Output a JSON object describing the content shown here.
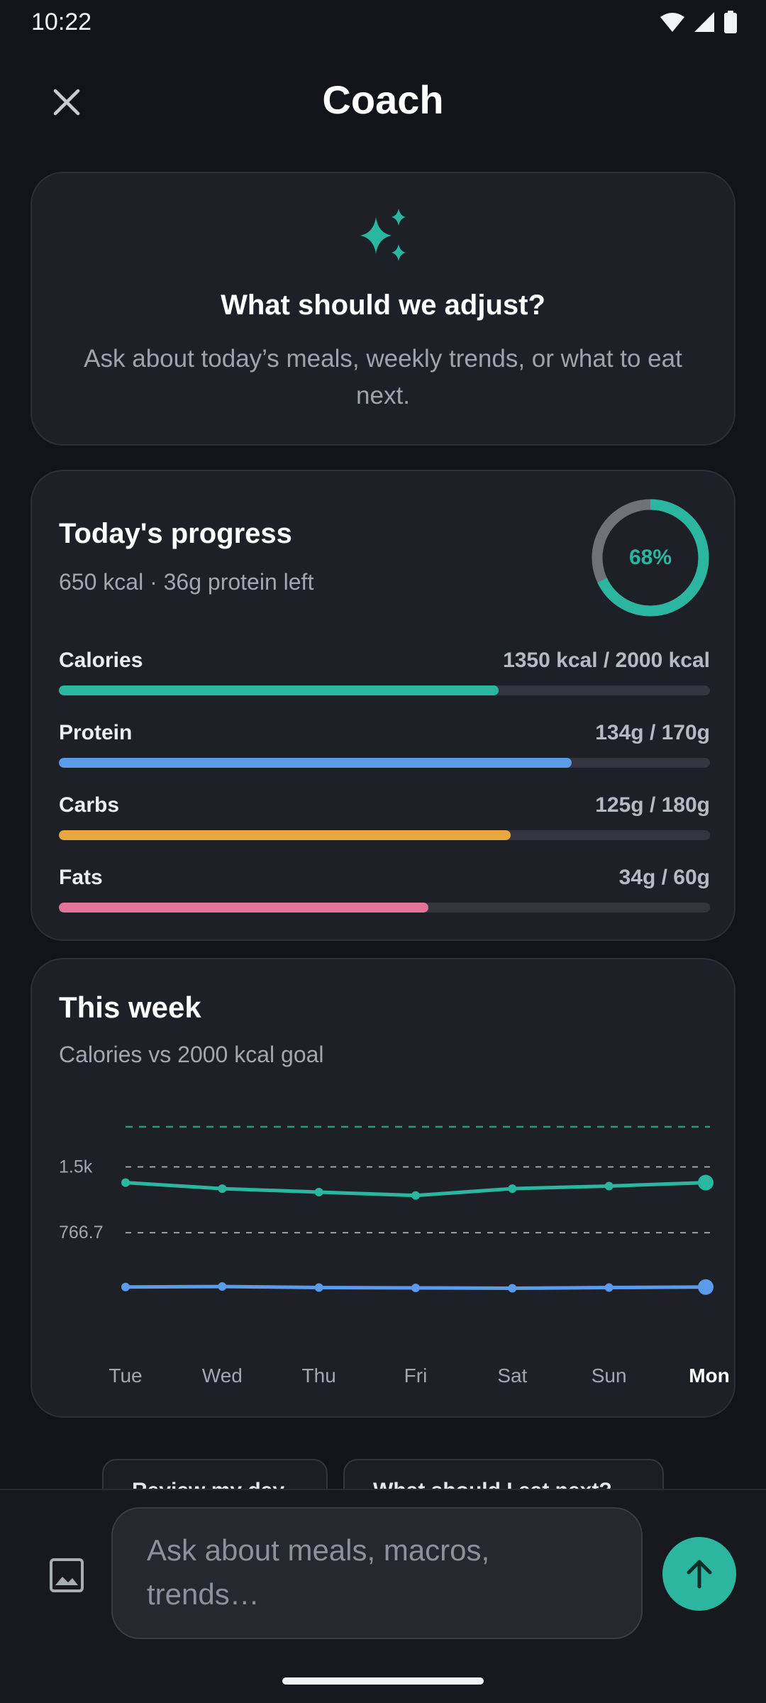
{
  "status_bar": {
    "time": "10:22"
  },
  "header": {
    "title": "Coach"
  },
  "intro": {
    "heading": "What should we adjust?",
    "subtitle": "Ask about today’s meals, weekly trends, or what to eat next."
  },
  "progress": {
    "title": "Today's progress",
    "subtitle": "650 kcal · 36g protein left",
    "ring_percent": 0.68,
    "ring_label": "68%",
    "macros": [
      {
        "name": "Calories",
        "value": "1350 kcal / 2000 kcal",
        "fraction": 0.675,
        "color": "#2bb6a0"
      },
      {
        "name": "Protein",
        "value": "134g / 170g",
        "fraction": 0.788,
        "color": "#5b9bea"
      },
      {
        "name": "Carbs",
        "value": "125g / 180g",
        "fraction": 0.694,
        "color": "#e6a83f"
      },
      {
        "name": "Fats",
        "value": "34g / 60g",
        "fraction": 0.567,
        "color": "#e57399"
      }
    ]
  },
  "week": {
    "title": "This week",
    "subtitle": "Calories vs 2000 kcal goal"
  },
  "chart_data": {
    "type": "line",
    "categories": [
      "Tue",
      "Wed",
      "Thu",
      "Fri",
      "Sat",
      "Sun",
      "Mon"
    ],
    "highlight_category": "Mon",
    "y_tick_labels": [
      "1.5k",
      "766.7"
    ],
    "y_ticks": [
      1533.3,
      766.7
    ],
    "ylim": [
      0,
      2000
    ],
    "goal": 2000,
    "series": [
      {
        "values": [
          1350,
          1280,
          1240,
          1200,
          1280,
          1310,
          1350
        ],
        "color": "#2bb6a0"
      },
      {
        "values": [
          134,
          140,
          128,
          124,
          120,
          128,
          134
        ],
        "color": "#5b9bea"
      }
    ]
  },
  "chips": [
    "Review my day",
    "What should I eat next?"
  ],
  "composer": {
    "placeholder": "Ask about meals, macros, trends…"
  },
  "colors": {
    "accent": "#2bb6a0",
    "background": "#131419",
    "card": "#1e2027"
  }
}
